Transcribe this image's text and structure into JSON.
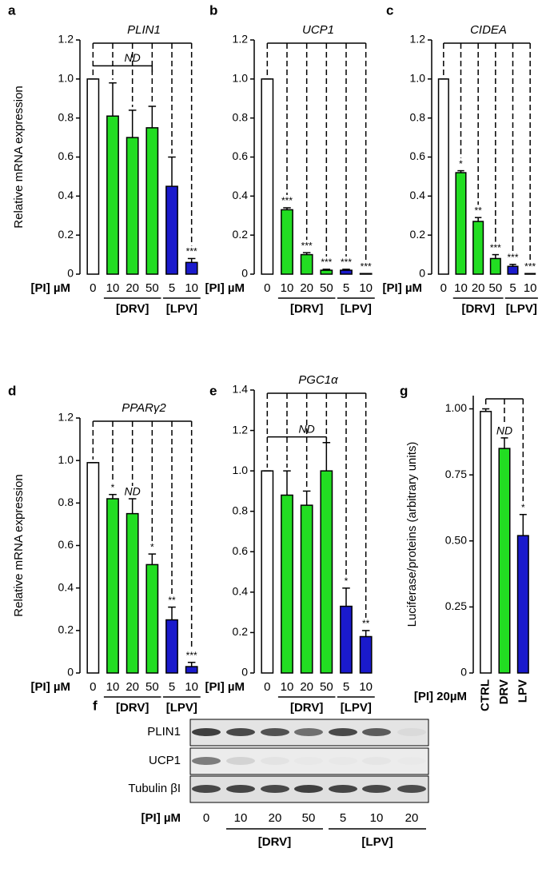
{
  "chart_data": [
    {
      "type": "bar",
      "panel": "a",
      "title": "PLIN1",
      "ylabel": "Relative mRNA expression",
      "xlabel": "[PI] µM",
      "categories": [
        "0",
        "10",
        "20",
        "50",
        "5",
        "10"
      ],
      "values": [
        1.0,
        0.81,
        0.7,
        0.75,
        0.45,
        0.06
      ],
      "errors": [
        0,
        0.17,
        0.14,
        0.11,
        0.15,
        0.02
      ],
      "colors": [
        "#ffffff",
        "#22dd22",
        "#22dd22",
        "#22dd22",
        "#1a1acc",
        "#1a1acc"
      ],
      "sig": [
        null,
        null,
        null,
        null,
        null,
        "***"
      ],
      "annotation": "ND",
      "groups": [
        "[DRV]",
        "[LPV]"
      ],
      "ylim": [
        0,
        1.2
      ],
      "yticks": [
        0,
        0.2,
        0.4,
        0.6,
        0.8,
        {
          "value": 1,
          "label": "1.0"
        },
        1.2
      ]
    },
    {
      "type": "bar",
      "panel": "b",
      "title": "UCP1",
      "xlabel": "[PI] µM",
      "categories": [
        "0",
        "10",
        "20",
        "50",
        "5",
        "10"
      ],
      "values": [
        1.0,
        0.33,
        0.1,
        0.02,
        0.02,
        0.003
      ],
      "errors": [
        0,
        0.01,
        0.01,
        0.005,
        0.005,
        0
      ],
      "colors": [
        "#ffffff",
        "#22dd22",
        "#22dd22",
        "#22dd22",
        "#1a1acc",
        "#1a1acc"
      ],
      "sig": [
        null,
        "***",
        "***",
        "***",
        "***",
        "***"
      ],
      "groups": [
        "[DRV]",
        "[LPV]"
      ],
      "ylim": [
        0,
        1.2
      ],
      "yticks": [
        0,
        0.2,
        0.4,
        0.6,
        0.8,
        {
          "value": 1,
          "label": "1.0"
        },
        1.2
      ]
    },
    {
      "type": "bar",
      "panel": "c",
      "title": "CIDEA",
      "xlabel": "[PI] µM",
      "categories": [
        "0",
        "10",
        "20",
        "50",
        "5",
        "10"
      ],
      "values": [
        1.0,
        0.52,
        0.27,
        0.08,
        0.04,
        0.003
      ],
      "errors": [
        0,
        0.01,
        0.02,
        0.02,
        0.01,
        0
      ],
      "colors": [
        "#ffffff",
        "#22dd22",
        "#22dd22",
        "#22dd22",
        "#1a1acc",
        "#1a1acc"
      ],
      "sig": [
        null,
        "*",
        "**",
        "***",
        "***",
        "***"
      ],
      "groups": [
        "[DRV]",
        "[LPV]"
      ],
      "ylim": [
        0,
        1.2
      ],
      "yticks": [
        0,
        0.2,
        0.4,
        0.6,
        0.8,
        {
          "value": 1,
          "label": "1.0"
        },
        1.2
      ]
    },
    {
      "type": "bar",
      "panel": "d",
      "title": "PPARγ2",
      "ylabel": "Relative mRNA expression",
      "xlabel": "[PI] µM",
      "categories": [
        "0",
        "10",
        "20",
        "50",
        "5",
        "10"
      ],
      "values": [
        0.99,
        0.82,
        0.75,
        0.51,
        0.25,
        0.03
      ],
      "errors": [
        0,
        0.02,
        0.07,
        0.05,
        0.06,
        0.02
      ],
      "colors": [
        "#ffffff",
        "#22dd22",
        "#22dd22",
        "#22dd22",
        "#1a1acc",
        "#1a1acc"
      ],
      "sig": [
        null,
        "*",
        "ND",
        "*",
        "**",
        "***"
      ],
      "groups": [
        "[DRV]",
        "[LPV]"
      ],
      "ylim": [
        0,
        1.2
      ],
      "yticks": [
        0,
        0.2,
        0.4,
        0.6,
        0.8,
        {
          "value": 1,
          "label": "1.0"
        },
        1.2
      ]
    },
    {
      "type": "bar",
      "panel": "e",
      "title": "PGC1α",
      "xlabel": "[PI] µM",
      "categories": [
        "0",
        "10",
        "20",
        "50",
        "5",
        "10"
      ],
      "values": [
        1.0,
        0.88,
        0.83,
        1.0,
        0.33,
        0.18
      ],
      "errors": [
        0,
        0.12,
        0.07,
        0.14,
        0.09,
        0.03
      ],
      "colors": [
        "#ffffff",
        "#22dd22",
        "#22dd22",
        "#22dd22",
        "#1a1acc",
        "#1a1acc"
      ],
      "sig": [
        null,
        null,
        null,
        null,
        "*",
        "**"
      ],
      "annotation": "ND",
      "groups": [
        "[DRV]",
        "[LPV]"
      ],
      "ylim": [
        0,
        1.4
      ],
      "yticks": [
        0,
        0.2,
        0.4,
        0.6,
        0.8,
        {
          "value": 1,
          "label": "1.0"
        },
        1.2,
        1.4
      ]
    },
    {
      "type": "bar",
      "panel": "g",
      "ylabel": "Luciferase/proteins (arbitrary units)",
      "xlabel": "[PI] 20µM",
      "categories": [
        "CTRL",
        "DRV",
        "LPV"
      ],
      "values": [
        0.99,
        0.85,
        0.52
      ],
      "errors": [
        0.01,
        0.04,
        0.08
      ],
      "colors": [
        "#ffffff",
        "#22dd22",
        "#1a1acc"
      ],
      "sig": [
        null,
        "ND",
        "*"
      ],
      "ylim": [
        0,
        1.05
      ],
      "yticks": [
        0,
        0.25,
        {
          "value": 0.5,
          "label": "0.50"
        },
        0.75,
        {
          "value": 1,
          "label": "1.00"
        }
      ]
    }
  ],
  "blot": {
    "panel": "f",
    "rows": [
      "PLIN1",
      "UCP1",
      "Tubulin βI"
    ],
    "xlabel": "[PI] µM",
    "lanes": [
      "0",
      "10",
      "20",
      "50",
      "5",
      "10",
      "20"
    ],
    "groups": [
      "[DRV]",
      "[LPV]"
    ]
  }
}
